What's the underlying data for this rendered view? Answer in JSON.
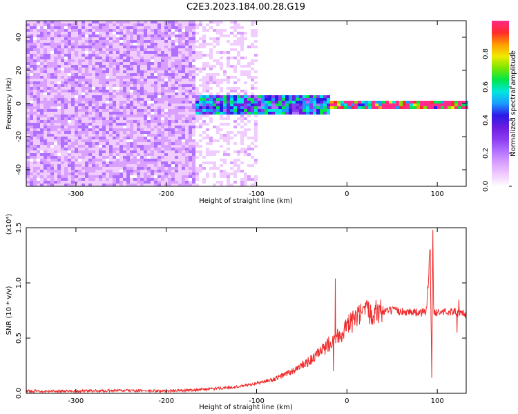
{
  "title": "C2E3.2023.184.00.28.G19",
  "colors": {
    "snr_line": "#ee2a2a",
    "axis": "#000000",
    "colormap": [
      "#ffffff",
      "#f0ccff",
      "#d9a0ff",
      "#b070ff",
      "#8a3cf0",
      "#6a1de0",
      "#2a1ae6",
      "#1a9cff",
      "#00e6e0",
      "#00e64a",
      "#7ae600",
      "#f0ea00",
      "#ff9c00",
      "#ff2a2a",
      "#ff2a8a"
    ]
  },
  "chart_data": [
    {
      "type": "heatmap",
      "description_series": "spectrogram",
      "xlabel": "Height of straight line (km)",
      "ylabel": "Frequency (Hz)",
      "xlim": [
        -355,
        132
      ],
      "ylim": [
        -50,
        50
      ],
      "xticks": [
        -300,
        -200,
        -100,
        0,
        100
      ],
      "yticks": [
        -40,
        -20,
        0,
        20,
        40
      ],
      "colorbar": {
        "label": "Normalized spectral amplitude",
        "range": [
          0,
          1
        ],
        "ticks": [
          "0.0",
          "0.2",
          "0.4",
          "0.6",
          "0.8"
        ]
      },
      "bands": [
        {
          "x_start": -355,
          "x_end": -170,
          "f_low": -50,
          "f_high": 50,
          "amplitude": 0.15
        },
        {
          "x_start": -170,
          "x_end": -100,
          "f_low": -50,
          "f_high": 50,
          "amplitude": 0.08
        },
        {
          "x_start": -170,
          "x_end": -20,
          "f_low": -6,
          "f_high": 6,
          "amplitude": 0.45
        },
        {
          "x_start": -20,
          "x_end": 132,
          "f_low": -2,
          "f_high": 2,
          "amplitude": 0.9
        }
      ]
    },
    {
      "type": "line",
      "xlabel": "Height of straight line (km)",
      "ylabel": "SNR (10 * v/v)",
      "y_multiplier": "(x10⁴)",
      "xlim": [
        -355,
        132
      ],
      "ylim": [
        0,
        1.5
      ],
      "xticks": [
        -300,
        -200,
        -100,
        0,
        100
      ],
      "yticks": [
        "0.0",
        "0.5",
        "1.0",
        "1.5"
      ],
      "series": [
        {
          "x": [
            -355,
            -300,
            -250,
            -200,
            -170,
            -150,
            -120,
            -100,
            -80,
            -60,
            -40,
            -25,
            -20,
            -15,
            -10,
            -5,
            0,
            10,
            20,
            30,
            40,
            50,
            60,
            70,
            80,
            88,
            92,
            94,
            95,
            96,
            98,
            100,
            110,
            120,
            125,
            132
          ],
          "y": [
            0.02,
            0.02,
            0.025,
            0.02,
            0.03,
            0.04,
            0.06,
            0.09,
            0.13,
            0.2,
            0.3,
            0.4,
            0.45,
            0.5,
            0.52,
            0.55,
            0.6,
            0.68,
            0.73,
            0.74,
            0.74,
            0.75,
            0.74,
            0.74,
            0.73,
            0.74,
            1.3,
            0.14,
            1.48,
            0.7,
            0.74,
            0.73,
            0.74,
            0.74,
            0.72,
            0.72
          ],
          "spikes": [
            {
              "x": -13,
              "y": 1.04
            },
            {
              "x": -15,
              "y": 0.2
            },
            {
              "x": 92,
              "y": 1.3
            },
            {
              "x": 94,
              "y": 0.14
            },
            {
              "x": 95,
              "y": 1.48
            },
            {
              "x": 122,
              "y": 0.55
            },
            {
              "x": 124,
              "y": 0.85
            }
          ]
        }
      ]
    }
  ]
}
